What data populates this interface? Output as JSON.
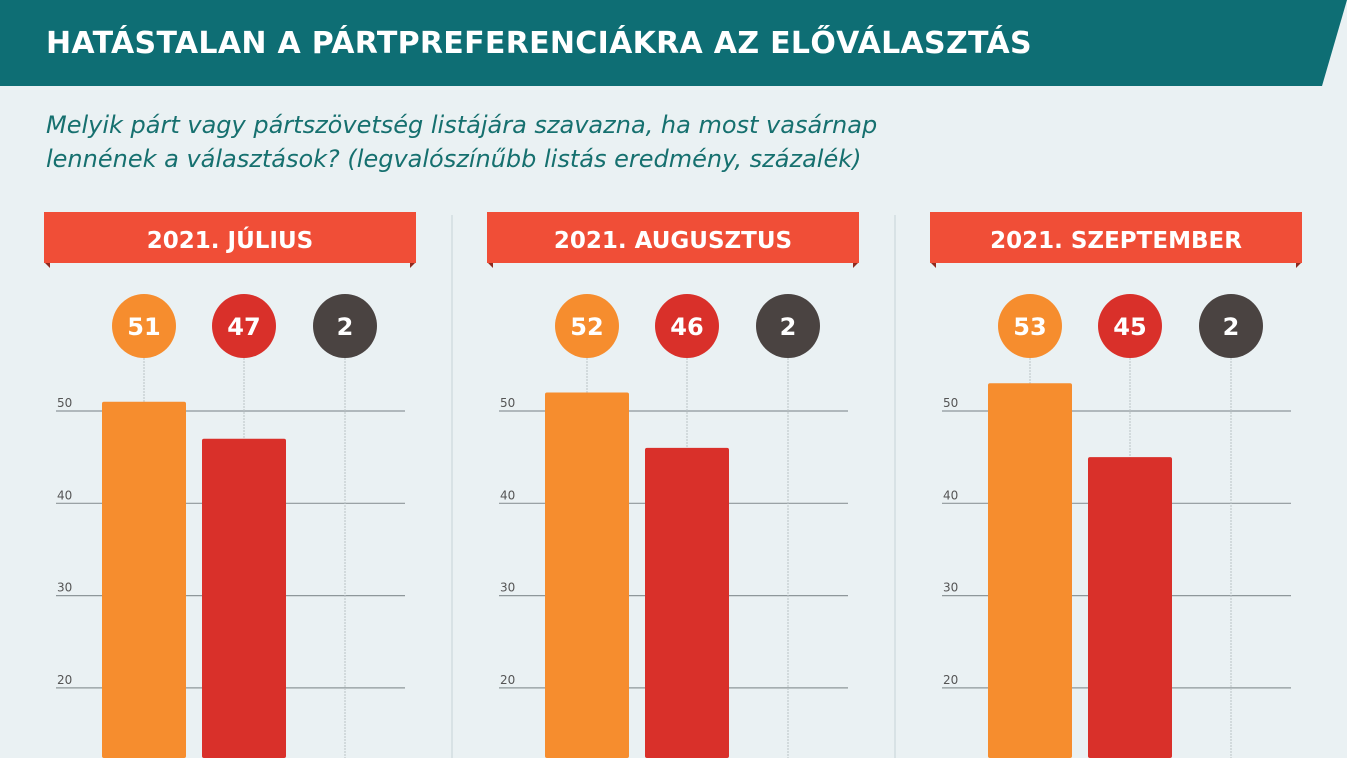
{
  "header": {
    "title": "HATÁSTALAN A PÁRTPREFERENCIÁKRA AZ ELŐVÁLASZTÁS",
    "subtitle_line1": "Melyik párt vagy pártszövetség listájára szavazna, ha most vasárnap",
    "subtitle_line2": "lennének a választások? (legvalószínűbb listás eredmény, százalék)"
  },
  "colors": {
    "header_bg": "#0e6e74",
    "banner": "#f04e37",
    "series": [
      "#f68d2e",
      "#d9302a",
      "#4a4341"
    ],
    "background": "#eaf1f3"
  },
  "chart_data": [
    {
      "type": "bar",
      "title": "2021. JÚLIUS",
      "values": [
        51,
        47,
        2
      ],
      "yticks": [
        20,
        30,
        40,
        50
      ],
      "grid": true
    },
    {
      "type": "bar",
      "title": "2021. AUGUSZTUS",
      "values": [
        52,
        46,
        2
      ],
      "yticks": [
        20,
        30,
        40,
        50
      ],
      "grid": true
    },
    {
      "type": "bar",
      "title": "2021. SZEPTEMBER",
      "values": [
        53,
        45,
        2
      ],
      "yticks": [
        20,
        30,
        40,
        50
      ],
      "grid": true
    }
  ]
}
